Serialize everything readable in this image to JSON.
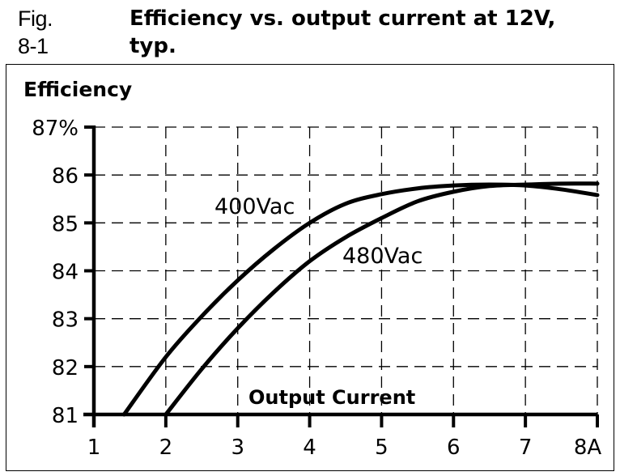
{
  "caption": {
    "figure_number": "Fig. 8-1",
    "title_line1": "Efficiency vs. output current at 12V,",
    "title_line2": "typ."
  },
  "chart_data": {
    "type": "line",
    "title": "Efficiency vs. output current at 12V, typ.",
    "xlabel": "Output Current",
    "ylabel": "Efficiency",
    "x_unit": "A",
    "y_unit": "%",
    "xlim": [
      1,
      8
    ],
    "ylim": [
      81,
      87
    ],
    "x_ticks": [
      "1",
      "2",
      "3",
      "4",
      "5",
      "6",
      "7",
      "8A"
    ],
    "y_ticks": [
      "81",
      "82",
      "83",
      "84",
      "85",
      "86",
      "87%"
    ],
    "grid": true,
    "grid_style": "dashed",
    "legend": "inline labels",
    "series": [
      {
        "name": "400Vac",
        "x": [
          1.42,
          2,
          2.5,
          3,
          3.5,
          4,
          4.5,
          5,
          5.5,
          6,
          6.5,
          7,
          7.5,
          8
        ],
        "y": [
          81.0,
          82.2,
          83.05,
          83.8,
          84.45,
          85.0,
          85.4,
          85.6,
          85.72,
          85.78,
          85.8,
          85.78,
          85.7,
          85.58
        ]
      },
      {
        "name": "480Vac",
        "x": [
          2,
          2.5,
          3,
          3.5,
          4,
          4.5,
          5,
          5.5,
          6,
          6.5,
          7,
          7.5,
          8
        ],
        "y": [
          81.0,
          81.95,
          82.8,
          83.55,
          84.2,
          84.7,
          85.1,
          85.45,
          85.65,
          85.77,
          85.8,
          85.82,
          85.82
        ]
      }
    ],
    "annotations": [
      {
        "text": "400Vac",
        "x": 3.5,
        "y": 85.4
      },
      {
        "text": "480Vac",
        "x": 5.0,
        "y": 84.3
      }
    ]
  }
}
